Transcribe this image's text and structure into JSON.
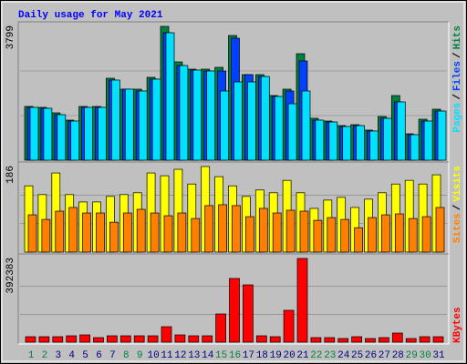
{
  "chart_data": {
    "title": "Daily usage for May 2021",
    "categories": [
      "1",
      "2",
      "3",
      "4",
      "5",
      "6",
      "7",
      "8",
      "9",
      "10",
      "11",
      "12",
      "13",
      "14",
      "15",
      "16",
      "17",
      "18",
      "19",
      "20",
      "21",
      "22",
      "23",
      "24",
      "25",
      "26",
      "27",
      "28",
      "29",
      "30",
      "31"
    ],
    "category_colors": [
      "#008040",
      "#008040",
      "#000080",
      "#000080",
      "#000080",
      "#000080",
      "#000080",
      "#008040",
      "#008040",
      "#000080",
      "#000080",
      "#000080",
      "#000080",
      "#000080",
      "#008040",
      "#008040",
      "#000080",
      "#000080",
      "#000080",
      "#000080",
      "#000080",
      "#008040",
      "#008040",
      "#000080",
      "#000080",
      "#000080",
      "#000080",
      "#000080",
      "#008040",
      "#008040",
      "#000080"
    ],
    "legend_separator": "/",
    "panels": [
      {
        "type": "bar",
        "ylim": [
          0,
          3799
        ],
        "yticks": [
          3799
        ],
        "series": [
          {
            "name": "Hits",
            "color": "#008040",
            "values": [
              1525,
              1499,
              1344,
              1137,
              1525,
              1525,
              2326,
              2016,
              2016,
              2352,
              3799,
              2791,
              2584,
              2584,
              2636,
              3540,
              2429,
              2429,
              1835,
              2016,
              3023,
              1189,
              1111,
              982,
              1008,
              853,
              1240,
              1835,
              749,
              1163,
              1447
            ]
          },
          {
            "name": "Files",
            "color": "#0040FF",
            "values": [
              1499,
              1473,
              1292,
              1111,
              1499,
              1499,
              2274,
              2016,
              1964,
              2300,
              3618,
              2687,
              2558,
              2532,
              2532,
              3463,
              2429,
              2377,
              1809,
              1964,
              2817,
              1137,
              1085,
              956,
              982,
              827,
              1189,
              1654,
              724,
              1111,
              1395
            ]
          },
          {
            "name": "Pages",
            "color": "#00E0FF",
            "values": [
              1499,
              1473,
              1292,
              1111,
              1499,
              1499,
              2274,
              2016,
              1964,
              2300,
              3618,
              2687,
              2558,
              2532,
              1964,
              2222,
              2222,
              2377,
              1809,
              1602,
              1964,
              1137,
              1085,
              956,
              982,
              827,
              1189,
              1654,
              724,
              1111,
              1395
            ]
          }
        ]
      },
      {
        "type": "bar",
        "ylim": [
          0,
          186
        ],
        "yticks": [
          186
        ],
        "series": [
          {
            "name": "Visits",
            "color": "#FFFF00",
            "values": [
              144,
              125,
              172,
              125,
              109,
              109,
              121,
              125,
              129,
              172,
              166,
              180,
              148,
              186,
              164,
              144,
              121,
              135,
              129,
              156,
              129,
              95,
              113,
              119,
              97,
              115,
              129,
              148,
              156,
              148,
              168
            ]
          },
          {
            "name": "Sites",
            "color": "#FF8000",
            "values": [
              81,
              71,
              89,
              97,
              85,
              85,
              65,
              85,
              93,
              85,
              79,
              85,
              73,
              101,
              103,
              101,
              77,
              95,
              85,
              91,
              89,
              69,
              75,
              71,
              53,
              75,
              81,
              83,
              73,
              77,
              97
            ]
          }
        ]
      },
      {
        "type": "bar",
        "ylim": [
          0,
          392383
        ],
        "yticks": [
          392383
        ],
        "series": [
          {
            "name": "KBytes",
            "color": "#FF0000",
            "values": [
              25590,
              25590,
              25590,
              29855,
              34120,
              21325,
              29855,
              29855,
              29855,
              29855,
              72505,
              34120,
              29855,
              29855,
              132215,
              298550,
              268695,
              29855,
              25590,
              149275,
              392383,
              21325,
              21325,
              17060,
              25590,
              17060,
              21325,
              42650,
              17060,
              25590,
              25590
            ]
          }
        ]
      }
    ]
  }
}
